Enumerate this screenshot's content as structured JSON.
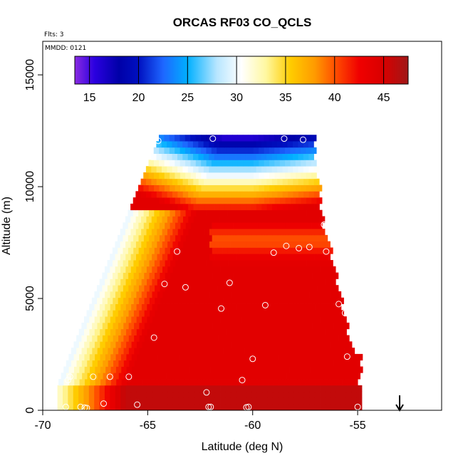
{
  "chart_data": {
    "type": "heatmap",
    "title": "ORCAS RF03 CO_QCLS",
    "flights_label": "Flts: 3",
    "date_label": "MMDD: 0121",
    "xlabel": "Latitude (deg N)",
    "ylabel": "Altitude (m)",
    "xlim": [
      -70,
      -51
    ],
    "ylim": [
      0,
      16500
    ],
    "x_ticks": [
      -70,
      -65,
      -60,
      -55
    ],
    "y_ticks": [
      0,
      5000,
      10000,
      15000
    ],
    "colorbar": {
      "range": [
        13.5,
        47.5
      ],
      "ticks": [
        15,
        20,
        25,
        30,
        35,
        40,
        45
      ],
      "stops": [
        {
          "v": 13.5,
          "color": "#8a2be2"
        },
        {
          "v": 15.5,
          "color": "#2b00e0"
        },
        {
          "v": 18,
          "color": "#0000a8"
        },
        {
          "v": 20,
          "color": "#0010c0"
        },
        {
          "v": 22.5,
          "color": "#1e66ff"
        },
        {
          "v": 25,
          "color": "#00b0ff"
        },
        {
          "v": 28,
          "color": "#b8e6ff"
        },
        {
          "v": 30.5,
          "color": "#ffffff"
        },
        {
          "v": 33,
          "color": "#fff8a0"
        },
        {
          "v": 35.5,
          "color": "#ffcc00"
        },
        {
          "v": 38,
          "color": "#ff9a00"
        },
        {
          "v": 40,
          "color": "#ff5000"
        },
        {
          "v": 42.5,
          "color": "#f00000"
        },
        {
          "v": 45,
          "color": "#d80000"
        },
        {
          "v": 47.5,
          "color": "#a01818"
        }
      ]
    },
    "arrow_latitude": -53,
    "observations": [
      {
        "lat": -64.5,
        "alt": 12050
      },
      {
        "lat": -61.9,
        "alt": 12150
      },
      {
        "lat": -58.5,
        "alt": 12150
      },
      {
        "lat": -57.6,
        "alt": 12100
      },
      {
        "lat": -56.6,
        "alt": 8300
      },
      {
        "lat": -63.6,
        "alt": 7100
      },
      {
        "lat": -59.0,
        "alt": 7050
      },
      {
        "lat": -58.4,
        "alt": 7350
      },
      {
        "lat": -57.8,
        "alt": 7250
      },
      {
        "lat": -57.3,
        "alt": 7300
      },
      {
        "lat": -56.5,
        "alt": 7100
      },
      {
        "lat": -64.2,
        "alt": 5650
      },
      {
        "lat": -63.2,
        "alt": 5500
      },
      {
        "lat": -61.1,
        "alt": 5700
      },
      {
        "lat": -61.5,
        "alt": 4550
      },
      {
        "lat": -59.4,
        "alt": 4700
      },
      {
        "lat": -55.9,
        "alt": 4750
      },
      {
        "lat": -55.6,
        "alt": 4350
      },
      {
        "lat": -64.7,
        "alt": 3250
      },
      {
        "lat": -60.0,
        "alt": 2300
      },
      {
        "lat": -55.5,
        "alt": 2400
      },
      {
        "lat": -68.8,
        "alt": 1350
      },
      {
        "lat": -68.7,
        "alt": 1500
      },
      {
        "lat": -67.6,
        "alt": 1500
      },
      {
        "lat": -66.8,
        "alt": 1500
      },
      {
        "lat": -65.9,
        "alt": 1500
      },
      {
        "lat": -60.5,
        "alt": 1350
      },
      {
        "lat": -62.2,
        "alt": 800
      },
      {
        "lat": -67.1,
        "alt": 300
      },
      {
        "lat": -65.5,
        "alt": 250
      },
      {
        "lat": -68.9,
        "alt": 150
      },
      {
        "lat": -68.2,
        "alt": 150
      },
      {
        "lat": -68.0,
        "alt": 120
      },
      {
        "lat": -67.9,
        "alt": 100
      },
      {
        "lat": -62.1,
        "alt": 150
      },
      {
        "lat": -62.0,
        "alt": 150
      },
      {
        "lat": -60.3,
        "alt": 130
      },
      {
        "lat": -60.2,
        "alt": 150
      },
      {
        "lat": -55.0,
        "alt": 150
      }
    ]
  }
}
